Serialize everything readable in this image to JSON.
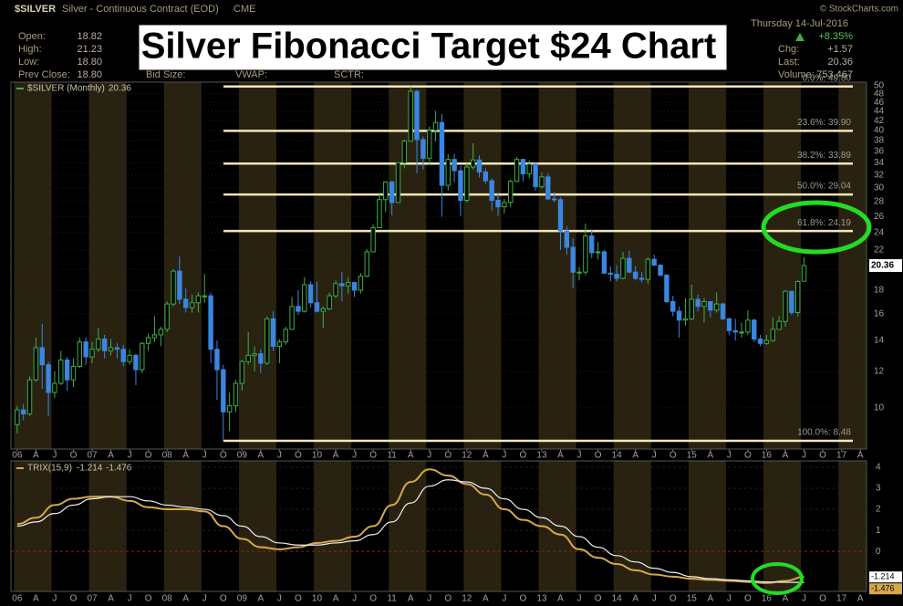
{
  "header": {
    "symbol": "$SILVER",
    "name": "Silver - Continuous Contract (EOD)",
    "exchange": "CME",
    "credit": "© StockCharts.com",
    "date": "Thursday 14-Jul-2016",
    "open_label": "Open:",
    "open": "18.82",
    "high_label": "High:",
    "high": "21.23",
    "low_label": "Low:",
    "low": "18.80",
    "prev_label": "Prev Close:",
    "prev": "18.80",
    "bid_label": "Bid Size:",
    "vwap_label": "VWAP:",
    "sctr_label": "SCTR:",
    "pct": "+8.35%",
    "chg_label": "Chg:",
    "chg": "+1.57",
    "last_label": "Last:",
    "last": "20.36",
    "vol_label": "Volume:",
    "vol": "753,467"
  },
  "chart_data": [
    {
      "type": "candlestick",
      "title": "Silver Fibonacci Target $24 Chart",
      "legend": "$SILVER (Monthly)",
      "log": true,
      "up_color": "#3cb043",
      "down_color": "#3a86e0",
      "xlim": [
        "2005-12",
        "2017-05"
      ],
      "ylim": [
        8.14,
        50.9
      ],
      "yticks": [
        10,
        12,
        14,
        16,
        18,
        20,
        22,
        24,
        26,
        28,
        30,
        32,
        34,
        36,
        38,
        40,
        42,
        44,
        46,
        48,
        50
      ],
      "xticks": [
        {
          "value": "2006-01",
          "label": "06"
        },
        {
          "value": "2006-04",
          "label": "A"
        },
        {
          "value": "2006-07",
          "label": "J"
        },
        {
          "value": "2006-10",
          "label": "O"
        },
        {
          "value": "2007-01",
          "label": "07"
        },
        {
          "value": "2007-04",
          "label": "A"
        },
        {
          "value": "2007-07",
          "label": "J"
        },
        {
          "value": "2007-10",
          "label": "O"
        },
        {
          "value": "2008-01",
          "label": "08"
        },
        {
          "value": "2008-04",
          "label": "A"
        },
        {
          "value": "2008-07",
          "label": "J"
        },
        {
          "value": "2008-10",
          "label": "O"
        },
        {
          "value": "2009-01",
          "label": "09"
        },
        {
          "value": "2009-04",
          "label": "A"
        },
        {
          "value": "2009-07",
          "label": "J"
        },
        {
          "value": "2009-10",
          "label": "O"
        },
        {
          "value": "2010-01",
          "label": "10"
        },
        {
          "value": "2010-04",
          "label": "A"
        },
        {
          "value": "2010-07",
          "label": "J"
        },
        {
          "value": "2010-10",
          "label": "O"
        },
        {
          "value": "2011-01",
          "label": "11"
        },
        {
          "value": "2011-04",
          "label": "A"
        },
        {
          "value": "2011-07",
          "label": "J"
        },
        {
          "value": "2011-10",
          "label": "O"
        },
        {
          "value": "2012-01",
          "label": "12"
        },
        {
          "value": "2012-04",
          "label": "A"
        },
        {
          "value": "2012-07",
          "label": "J"
        },
        {
          "value": "2012-10",
          "label": "O"
        },
        {
          "value": "2013-01",
          "label": "13"
        },
        {
          "value": "2013-04",
          "label": "A"
        },
        {
          "value": "2013-07",
          "label": "J"
        },
        {
          "value": "2013-10",
          "label": "O"
        },
        {
          "value": "2014-01",
          "label": "14"
        },
        {
          "value": "2014-04",
          "label": "A"
        },
        {
          "value": "2014-07",
          "label": "J"
        },
        {
          "value": "2014-10",
          "label": "O"
        },
        {
          "value": "2015-01",
          "label": "15"
        },
        {
          "value": "2015-04",
          "label": "A"
        },
        {
          "value": "2015-07",
          "label": "J"
        },
        {
          "value": "2015-10",
          "label": "O"
        },
        {
          "value": "2016-01",
          "label": "16"
        },
        {
          "value": "2016-04",
          "label": "A"
        },
        {
          "value": "2016-07",
          "label": "J"
        },
        {
          "value": "2016-10",
          "label": "O"
        },
        {
          "value": "2017-01",
          "label": "17"
        },
        {
          "value": "2017-04",
          "label": "A"
        }
      ],
      "fib_levels": [
        {
          "value": 49.8,
          "label": "0.0%: 49.80"
        },
        {
          "value": 39.9,
          "label": "23.6%: 39.90"
        },
        {
          "value": 33.89,
          "label": "38.2%: 33.89"
        },
        {
          "value": 29.04,
          "label": "50.0%: 29.04"
        },
        {
          "value": 24.19,
          "label": "61.8%: 24.19"
        },
        {
          "value": 8.48,
          "label": "100.0%: 8.48"
        }
      ],
      "x": [
        "2006-01",
        "2006-02",
        "2006-03",
        "2006-04",
        "2006-05",
        "2006-06",
        "2006-07",
        "2006-08",
        "2006-09",
        "2006-10",
        "2006-11",
        "2006-12",
        "2007-01",
        "2007-02",
        "2007-03",
        "2007-04",
        "2007-05",
        "2007-06",
        "2007-07",
        "2007-08",
        "2007-09",
        "2007-10",
        "2007-11",
        "2007-12",
        "2008-01",
        "2008-02",
        "2008-03",
        "2008-04",
        "2008-05",
        "2008-06",
        "2008-07",
        "2008-08",
        "2008-09",
        "2008-10",
        "2008-11",
        "2008-12",
        "2009-01",
        "2009-02",
        "2009-03",
        "2009-04",
        "2009-05",
        "2009-06",
        "2009-07",
        "2009-08",
        "2009-09",
        "2009-10",
        "2009-11",
        "2009-12",
        "2010-01",
        "2010-02",
        "2010-03",
        "2010-04",
        "2010-05",
        "2010-06",
        "2010-07",
        "2010-08",
        "2010-09",
        "2010-10",
        "2010-11",
        "2010-12",
        "2011-01",
        "2011-02",
        "2011-03",
        "2011-04",
        "2011-05",
        "2011-06",
        "2011-07",
        "2011-08",
        "2011-09",
        "2011-10",
        "2011-11",
        "2011-12",
        "2012-01",
        "2012-02",
        "2012-03",
        "2012-04",
        "2012-05",
        "2012-06",
        "2012-07",
        "2012-08",
        "2012-09",
        "2012-10",
        "2012-11",
        "2012-12",
        "2013-01",
        "2013-02",
        "2013-03",
        "2013-04",
        "2013-05",
        "2013-06",
        "2013-07",
        "2013-08",
        "2013-09",
        "2013-10",
        "2013-11",
        "2013-12",
        "2014-01",
        "2014-02",
        "2014-03",
        "2014-04",
        "2014-05",
        "2014-06",
        "2014-07",
        "2014-08",
        "2014-09",
        "2014-10",
        "2014-11",
        "2014-12",
        "2015-01",
        "2015-02",
        "2015-03",
        "2015-04",
        "2015-05",
        "2015-06",
        "2015-07",
        "2015-08",
        "2015-09",
        "2015-10",
        "2015-11",
        "2015-12",
        "2016-01",
        "2016-02",
        "2016-03",
        "2016-04",
        "2016-05",
        "2016-06",
        "2016-07"
      ],
      "open": [
        9.2,
        9.9,
        9.7,
        11.5,
        13.5,
        12.4,
        10.8,
        11.3,
        12.7,
        11.5,
        12.3,
        13.9,
        12.9,
        13.4,
        14.1,
        13.3,
        13.5,
        13.4,
        12.6,
        13.0,
        12.1,
        13.8,
        14.2,
        14.4,
        14.8,
        16.8,
        19.8,
        17.2,
        16.5,
        16.9,
        17.5,
        17.5,
        13.4,
        12.1,
        9.8,
        10.1,
        11.3,
        12.6,
        13.0,
        13.1,
        12.5,
        15.6,
        13.6,
        13.9,
        14.8,
        16.6,
        16.2,
        18.5,
        16.9,
        16.2,
        16.4,
        17.5,
        18.6,
        18.4,
        18.7,
        18.0,
        19.3,
        21.8,
        24.6,
        28.3,
        30.9,
        27.9,
        34.0,
        37.9,
        48.6,
        38.2,
        34.8,
        40.0,
        41.6,
        30.4,
        34.6,
        32.7,
        28.2,
        33.3,
        34.5,
        32.5,
        31.1,
        28.2,
        27.3,
        27.9,
        31.0,
        34.6,
        32.2,
        33.8,
        30.2,
        31.7,
        28.4,
        28.3,
        24.2,
        22.3,
        19.7,
        19.7,
        23.6,
        21.7,
        21.8,
        19.6,
        19.5,
        19.1,
        21.1,
        19.7,
        19.1,
        19.0,
        21.0,
        20.4,
        19.4,
        17.0,
        16.2,
        15.5,
        15.6,
        17.2,
        16.6,
        17.0,
        16.3,
        16.8,
        15.6,
        14.7,
        14.6,
        14.6,
        15.5,
        14.1,
        13.8,
        14.0,
        14.8,
        15.4,
        17.9,
        16.1,
        18.82
      ],
      "high": [
        10.1,
        10.2,
        11.7,
        14.2,
        15.2,
        12.6,
        12.0,
        13.3,
        12.9,
        12.8,
        14.2,
        14.2,
        13.9,
        14.9,
        14.4,
        14.1,
        13.8,
        13.7,
        13.4,
        13.1,
        13.9,
        14.5,
        15.8,
        15.0,
        17.0,
        20.0,
        21.3,
        18.2,
        17.6,
        17.8,
        19.5,
        17.8,
        14.0,
        12.4,
        10.8,
        11.5,
        12.7,
        14.6,
        13.6,
        13.4,
        15.8,
        16.2,
        14.1,
        15.0,
        17.4,
        18.0,
        19.2,
        18.8,
        18.8,
        16.6,
        17.8,
        18.9,
        19.7,
        19.2,
        18.8,
        19.6,
        22.1,
        25.0,
        29.3,
        31.0,
        31.1,
        34.1,
        38.2,
        49.8,
        49.0,
        38.8,
        40.8,
        44.1,
        43.4,
        35.5,
        35.6,
        33.5,
        34.0,
        37.5,
        35.3,
        33.1,
        31.5,
        29.3,
        28.4,
        31.3,
        35.0,
        34.7,
        34.4,
        34.0,
        32.4,
        32.3,
        29.4,
        28.6,
        24.8,
        23.3,
        20.2,
        25.1,
        24.4,
        22.9,
        22.0,
        20.3,
        20.4,
        21.8,
        21.9,
        20.3,
        19.7,
        21.2,
        21.5,
        20.5,
        19.5,
        17.5,
        16.6,
        17.3,
        18.5,
        17.6,
        17.3,
        17.0,
        17.8,
        16.9,
        15.7,
        15.6,
        15.3,
        16.3,
        15.6,
        14.4,
        14.4,
        15.7,
        15.8,
        18.0,
        17.9,
        18.9,
        21.23
      ],
      "low": [
        8.8,
        9.4,
        9.6,
        11.4,
        11.0,
        9.6,
        10.5,
        11.2,
        10.9,
        11.1,
        12.2,
        12.4,
        12.5,
        13.2,
        12.8,
        13.0,
        12.8,
        12.3,
        12.4,
        11.2,
        11.9,
        13.3,
        13.9,
        13.6,
        14.6,
        16.6,
        16.8,
        16.1,
        16.1,
        16.1,
        16.9,
        12.5,
        10.4,
        8.48,
        8.9,
        9.8,
        10.9,
        12.4,
        12.0,
        11.9,
        12.4,
        13.3,
        12.5,
        13.7,
        14.8,
        15.9,
        16.1,
        16.5,
        16.1,
        14.9,
        16.3,
        17.3,
        17.0,
        17.7,
        17.4,
        17.7,
        19.2,
        21.8,
        24.6,
        26.6,
        26.2,
        27.9,
        33.1,
        37.9,
        32.3,
        32.9,
        33.6,
        37.9,
        26.0,
        29.6,
        30.9,
        26.1,
        27.9,
        32.9,
        31.6,
        30.6,
        26.8,
        26.1,
        26.4,
        27.2,
        30.9,
        31.0,
        31.5,
        29.6,
        29.9,
        28.2,
        27.9,
        22.0,
        21.5,
        18.2,
        18.9,
        19.4,
        21.1,
        21.0,
        19.5,
        18.8,
        18.8,
        19.0,
        19.6,
        18.9,
        18.7,
        18.6,
        20.3,
        19.3,
        16.9,
        15.8,
        14.2,
        15.1,
        15.5,
        16.2,
        15.3,
        15.7,
        16.1,
        15.5,
        14.4,
        14.0,
        14.2,
        14.4,
        13.9,
        13.6,
        13.7,
        13.9,
        14.8,
        15.0,
        15.9,
        15.8,
        18.8
      ],
      "close": [
        9.9,
        9.7,
        11.5,
        13.5,
        12.4,
        10.8,
        11.3,
        12.7,
        11.5,
        12.3,
        13.9,
        12.9,
        13.4,
        14.1,
        13.3,
        13.5,
        13.4,
        12.6,
        13.0,
        12.1,
        13.8,
        14.2,
        14.4,
        14.8,
        16.8,
        19.8,
        17.2,
        16.5,
        16.9,
        17.5,
        17.5,
        13.4,
        12.1,
        9.8,
        10.1,
        11.3,
        12.6,
        13.0,
        13.1,
        12.5,
        15.6,
        13.6,
        13.9,
        14.8,
        16.6,
        16.2,
        18.5,
        16.9,
        16.2,
        16.4,
        17.5,
        18.6,
        18.4,
        18.7,
        18.0,
        19.3,
        21.8,
        24.6,
        28.3,
        30.9,
        27.9,
        34.0,
        37.9,
        48.6,
        38.2,
        34.8,
        40.0,
        41.6,
        30.4,
        34.6,
        32.7,
        28.2,
        33.3,
        34.5,
        32.5,
        31.1,
        28.2,
        27.3,
        27.9,
        31.0,
        34.6,
        32.2,
        33.8,
        30.2,
        31.7,
        28.4,
        28.3,
        24.2,
        22.3,
        19.7,
        19.7,
        23.6,
        21.7,
        21.8,
        19.6,
        19.5,
        19.1,
        21.1,
        19.7,
        19.1,
        19.0,
        21.0,
        20.4,
        19.4,
        17.0,
        16.2,
        15.5,
        15.6,
        17.2,
        16.6,
        17.0,
        16.3,
        16.8,
        15.6,
        14.7,
        14.6,
        14.6,
        15.5,
        14.1,
        13.8,
        14.0,
        14.8,
        15.4,
        17.9,
        16.1,
        18.8,
        20.36
      ]
    },
    {
      "type": "line",
      "legend": "TRIX(15,9)",
      "xlim": [
        "2005-12",
        "2017-05"
      ],
      "ylim": [
        -1.9,
        4.3
      ],
      "yticks": [
        4,
        3,
        2,
        1,
        0
      ],
      "x": [
        "2006-01",
        "2006-04",
        "2006-07",
        "2006-10",
        "2007-01",
        "2007-04",
        "2007-07",
        "2007-10",
        "2008-01",
        "2008-04",
        "2008-07",
        "2008-10",
        "2009-01",
        "2009-04",
        "2009-07",
        "2009-10",
        "2010-01",
        "2010-04",
        "2010-07",
        "2010-10",
        "2011-01",
        "2011-04",
        "2011-07",
        "2011-10",
        "2012-01",
        "2012-04",
        "2012-07",
        "2012-10",
        "2013-01",
        "2013-04",
        "2013-07",
        "2013-10",
        "2014-01",
        "2014-04",
        "2014-07",
        "2014-10",
        "2015-01",
        "2015-04",
        "2015-07",
        "2015-10",
        "2016-01",
        "2016-04",
        "2016-07"
      ],
      "series": [
        {
          "color": "#d4a94a",
          "values": [
            1.3,
            1.6,
            2.2,
            2.5,
            2.6,
            2.6,
            2.4,
            2.1,
            2.0,
            2.0,
            1.9,
            1.2,
            0.6,
            0.2,
            0.1,
            0.2,
            0.4,
            0.5,
            0.7,
            1.2,
            2.2,
            3.3,
            3.9,
            3.6,
            3.2,
            2.7,
            2.0,
            1.5,
            1.2,
            0.8,
            0.1,
            -0.3,
            -0.6,
            -0.9,
            -1.1,
            -1.2,
            -1.3,
            -1.35,
            -1.4,
            -1.45,
            -1.5,
            -1.4,
            -1.214
          ]
        },
        {
          "color": "#f0f0f0",
          "values": [
            1.2,
            1.4,
            1.8,
            2.2,
            2.5,
            2.6,
            2.6,
            2.4,
            2.2,
            2.1,
            2.0,
            1.7,
            1.2,
            0.7,
            0.4,
            0.3,
            0.3,
            0.4,
            0.5,
            0.8,
            1.4,
            2.3,
            3.1,
            3.4,
            3.3,
            3.0,
            2.5,
            2.0,
            1.6,
            1.2,
            0.7,
            0.2,
            -0.2,
            -0.5,
            -0.8,
            -1.0,
            -1.2,
            -1.3,
            -1.35,
            -1.4,
            -1.45,
            -1.47,
            -1.476
          ]
        }
      ]
    }
  ]
}
